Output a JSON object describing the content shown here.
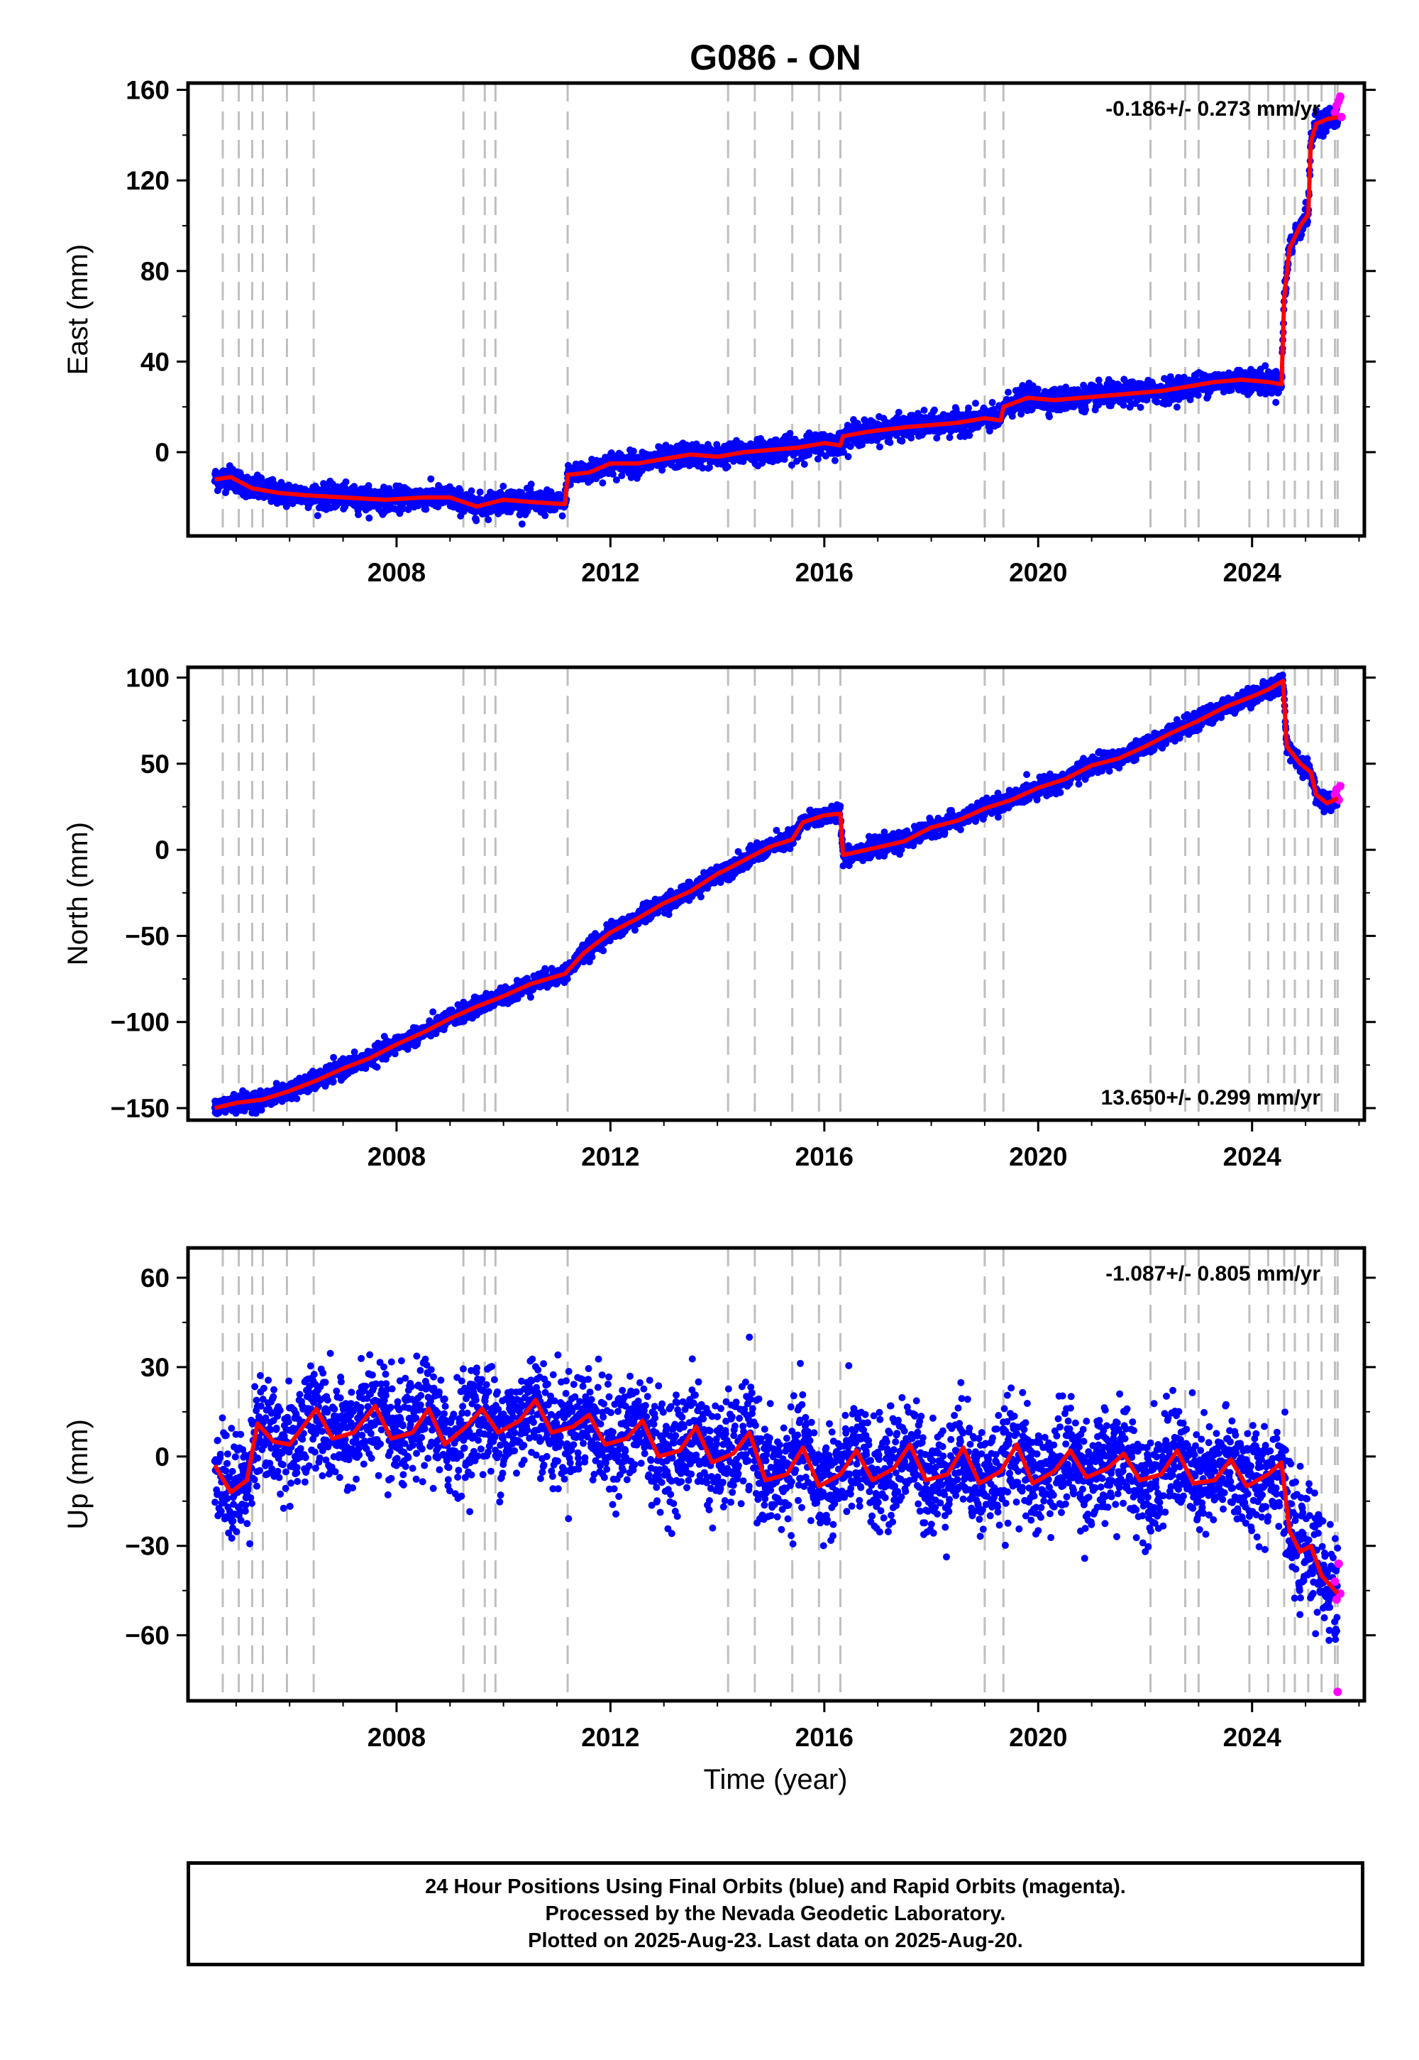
{
  "title": "G086 - ON",
  "xlabel": "Time (year)",
  "colors": {
    "final_orbits": "#0000ff",
    "rapid_orbits": "#ff00ff",
    "model_fit": "#ff0000",
    "equipment_change_lines": "#bfbfbf"
  },
  "equipment_change_dates": [
    2004.75,
    2005.05,
    2005.3,
    2005.5,
    2005.95,
    2006.45,
    2009.25,
    2009.65,
    2009.85,
    2011.2,
    2014.2,
    2014.7,
    2015.4,
    2015.9,
    2016.3,
    2019.0,
    2019.35,
    2022.1,
    2022.75,
    2023.0,
    2023.95,
    2024.3,
    2024.6,
    2024.8,
    2025.05,
    2025.3,
    2025.55,
    2025.6
  ],
  "footer": {
    "line1": "24 Hour Positions Using Final Orbits (blue) and Rapid Orbits (magenta).",
    "line2": "Processed by the Nevada Geodetic Laboratory.",
    "line3": "Plotted on 2025-Aug-23. Last data on 2025-Aug-20."
  },
  "chart_data": [
    {
      "type": "scatter",
      "ylabel": "East (mm)",
      "rate_label": "-0.186+/- 0.273 mm/yr",
      "rate_label_position": "top-right",
      "xlim": [
        2004.1,
        2026.1
      ],
      "ylim": [
        -37,
        163
      ],
      "xticks": [
        2008,
        2012,
        2016,
        2020,
        2024
      ],
      "yticks": [
        0,
        40,
        80,
        120,
        160
      ],
      "x_tick_labels": [
        "2008",
        "2012",
        "2016",
        "2020",
        "2024"
      ],
      "y_tick_labels": [
        "0",
        "40",
        "80",
        "120",
        "160"
      ],
      "scatter_spread": 2.5,
      "series": [
        {
          "points": [
            [
              2004.6,
              -12
            ],
            [
              2004.9,
              -11
            ],
            [
              2005.3,
              -16
            ],
            [
              2005.8,
              -18
            ],
            [
              2006.3,
              -19
            ],
            [
              2007.0,
              -20
            ],
            [
              2007.8,
              -21
            ],
            [
              2008.5,
              -20
            ],
            [
              2009.0,
              -20
            ],
            [
              2009.5,
              -24
            ],
            [
              2010.0,
              -21
            ],
            [
              2010.5,
              -22
            ],
            [
              2011.15,
              -23
            ],
            [
              2011.2,
              -10
            ],
            [
              2011.6,
              -9
            ],
            [
              2012.0,
              -5
            ],
            [
              2012.5,
              -5
            ],
            [
              2013.0,
              -3
            ],
            [
              2013.5,
              -1
            ],
            [
              2014.0,
              -2
            ],
            [
              2014.5,
              0
            ],
            [
              2015.0,
              1
            ],
            [
              2015.5,
              2
            ],
            [
              2016.0,
              4
            ],
            [
              2016.3,
              3
            ],
            [
              2016.35,
              7
            ],
            [
              2016.8,
              9
            ],
            [
              2017.5,
              11
            ],
            [
              2018.0,
              12
            ],
            [
              2018.5,
              13
            ],
            [
              2019.0,
              15
            ],
            [
              2019.3,
              14
            ],
            [
              2019.35,
              20
            ],
            [
              2019.8,
              24
            ],
            [
              2020.3,
              23
            ],
            [
              2020.8,
              24
            ],
            [
              2021.3,
              25
            ],
            [
              2021.8,
              26
            ],
            [
              2022.3,
              27
            ],
            [
              2022.8,
              29
            ],
            [
              2023.3,
              31
            ],
            [
              2023.8,
              32
            ],
            [
              2024.3,
              31
            ],
            [
              2024.55,
              30
            ],
            [
              2024.6,
              68
            ],
            [
              2024.7,
              90
            ],
            [
              2024.9,
              100
            ],
            [
              2025.05,
              105
            ],
            [
              2025.1,
              137
            ],
            [
              2025.2,
              145
            ],
            [
              2025.4,
              147
            ],
            [
              2025.6,
              148
            ]
          ]
        }
      ],
      "rapid_points": [
        [
          2025.55,
          150
        ],
        [
          2025.58,
          153
        ],
        [
          2025.62,
          155
        ],
        [
          2025.65,
          157
        ],
        [
          2025.67,
          148
        ]
      ]
    },
    {
      "type": "scatter",
      "ylabel": "North (mm)",
      "rate_label": "13.650+/- 0.299 mm/yr",
      "rate_label_position": "bottom-right",
      "xlim": [
        2004.1,
        2026.1
      ],
      "ylim": [
        -157,
        106
      ],
      "xticks": [
        2008,
        2012,
        2016,
        2020,
        2024
      ],
      "yticks": [
        -150,
        -100,
        -50,
        0,
        50,
        100
      ],
      "x_tick_labels": [
        "2008",
        "2012",
        "2016",
        "2020",
        "2024"
      ],
      "y_tick_labels": [
        "−150",
        "−100",
        "−50",
        "0",
        "50",
        "100"
      ],
      "scatter_spread": 2.5,
      "series": [
        {
          "points": [
            [
              2004.6,
              -150
            ],
            [
              2005.0,
              -147
            ],
            [
              2005.5,
              -145
            ],
            [
              2006.0,
              -140
            ],
            [
              2006.5,
              -134
            ],
            [
              2007.0,
              -127
            ],
            [
              2007.5,
              -121
            ],
            [
              2008.0,
              -113
            ],
            [
              2008.5,
              -106
            ],
            [
              2009.0,
              -98
            ],
            [
              2009.5,
              -91
            ],
            [
              2010.0,
              -85
            ],
            [
              2010.5,
              -78
            ],
            [
              2011.15,
              -72
            ],
            [
              2011.5,
              -60
            ],
            [
              2012.0,
              -48
            ],
            [
              2012.5,
              -40
            ],
            [
              2013.0,
              -31
            ],
            [
              2013.5,
              -24
            ],
            [
              2014.0,
              -14
            ],
            [
              2014.2,
              -11
            ],
            [
              2014.5,
              -6
            ],
            [
              2015.0,
              2
            ],
            [
              2015.4,
              6
            ],
            [
              2015.6,
              16
            ],
            [
              2016.0,
              20
            ],
            [
              2016.3,
              21
            ],
            [
              2016.35,
              -3
            ],
            [
              2016.8,
              0
            ],
            [
              2017.5,
              5
            ],
            [
              2018.0,
              13
            ],
            [
              2018.5,
              17
            ],
            [
              2019.0,
              24
            ],
            [
              2019.5,
              29
            ],
            [
              2020.0,
              36
            ],
            [
              2020.5,
              41
            ],
            [
              2021.0,
              49
            ],
            [
              2021.5,
              53
            ],
            [
              2022.0,
              60
            ],
            [
              2022.5,
              68
            ],
            [
              2023.0,
              75
            ],
            [
              2023.5,
              83
            ],
            [
              2024.0,
              89
            ],
            [
              2024.3,
              93
            ],
            [
              2024.58,
              98
            ],
            [
              2024.65,
              60
            ],
            [
              2024.9,
              50
            ],
            [
              2025.1,
              45
            ],
            [
              2025.2,
              32
            ],
            [
              2025.4,
              27
            ],
            [
              2025.6,
              30
            ]
          ]
        }
      ],
      "rapid_points": [
        [
          2025.55,
          32
        ],
        [
          2025.58,
          35
        ],
        [
          2025.62,
          29
        ],
        [
          2025.65,
          37
        ]
      ]
    },
    {
      "type": "scatter",
      "ylabel": "Up (mm)",
      "rate_label": "-1.087+/- 0.805 mm/yr",
      "rate_label_position": "top-right",
      "xlim": [
        2004.1,
        2026.1
      ],
      "ylim": [
        -82,
        70
      ],
      "xticks": [
        2008,
        2012,
        2016,
        2020,
        2024
      ],
      "yticks": [
        -60,
        -30,
        0,
        30,
        60
      ],
      "x_tick_labels": [
        "2008",
        "2012",
        "2016",
        "2020",
        "2024"
      ],
      "y_tick_labels": [
        "−60",
        "−30",
        "0",
        "30",
        "60"
      ],
      "scatter_spread": 9,
      "series": [
        {
          "points": [
            [
              2004.6,
              -3
            ],
            [
              2004.9,
              -12
            ],
            [
              2005.2,
              -8
            ],
            [
              2005.4,
              11
            ],
            [
              2005.7,
              5
            ],
            [
              2006.0,
              4
            ],
            [
              2006.5,
              16
            ],
            [
              2006.8,
              6
            ],
            [
              2007.2,
              8
            ],
            [
              2007.6,
              17
            ],
            [
              2007.9,
              6
            ],
            [
              2008.3,
              8
            ],
            [
              2008.6,
              16
            ],
            [
              2008.9,
              4
            ],
            [
              2009.3,
              10
            ],
            [
              2009.6,
              16
            ],
            [
              2009.9,
              8
            ],
            [
              2010.3,
              12
            ],
            [
              2010.6,
              19
            ],
            [
              2010.9,
              8
            ],
            [
              2011.3,
              10
            ],
            [
              2011.6,
              14
            ],
            [
              2011.9,
              4
            ],
            [
              2012.3,
              6
            ],
            [
              2012.6,
              12
            ],
            [
              2012.9,
              0
            ],
            [
              2013.3,
              2
            ],
            [
              2013.6,
              10
            ],
            [
              2013.9,
              -2
            ],
            [
              2014.3,
              1
            ],
            [
              2014.6,
              8
            ],
            [
              2014.9,
              -8
            ],
            [
              2015.3,
              -6
            ],
            [
              2015.6,
              3
            ],
            [
              2015.9,
              -10
            ],
            [
              2016.3,
              -6
            ],
            [
              2016.6,
              2
            ],
            [
              2016.9,
              -8
            ],
            [
              2017.3,
              -4
            ],
            [
              2017.6,
              4
            ],
            [
              2017.9,
              -8
            ],
            [
              2018.3,
              -6
            ],
            [
              2018.6,
              3
            ],
            [
              2018.9,
              -9
            ],
            [
              2019.3,
              -5
            ],
            [
              2019.6,
              4
            ],
            [
              2019.9,
              -9
            ],
            [
              2020.3,
              -5
            ],
            [
              2020.6,
              2
            ],
            [
              2020.9,
              -7
            ],
            [
              2021.3,
              -4
            ],
            [
              2021.6,
              1
            ],
            [
              2021.9,
              -8
            ],
            [
              2022.3,
              -6
            ],
            [
              2022.6,
              2
            ],
            [
              2022.9,
              -9
            ],
            [
              2023.3,
              -8
            ],
            [
              2023.6,
              -1
            ],
            [
              2023.9,
              -10
            ],
            [
              2024.3,
              -6
            ],
            [
              2024.55,
              -2
            ],
            [
              2024.7,
              -25
            ],
            [
              2024.9,
              -32
            ],
            [
              2025.1,
              -30
            ],
            [
              2025.3,
              -40
            ],
            [
              2025.5,
              -44
            ],
            [
              2025.6,
              -46
            ]
          ]
        }
      ],
      "rapid_points": [
        [
          2025.55,
          -42
        ],
        [
          2025.58,
          -48
        ],
        [
          2025.62,
          -36
        ],
        [
          2025.65,
          -46
        ],
        [
          2025.6,
          -79
        ]
      ]
    }
  ]
}
